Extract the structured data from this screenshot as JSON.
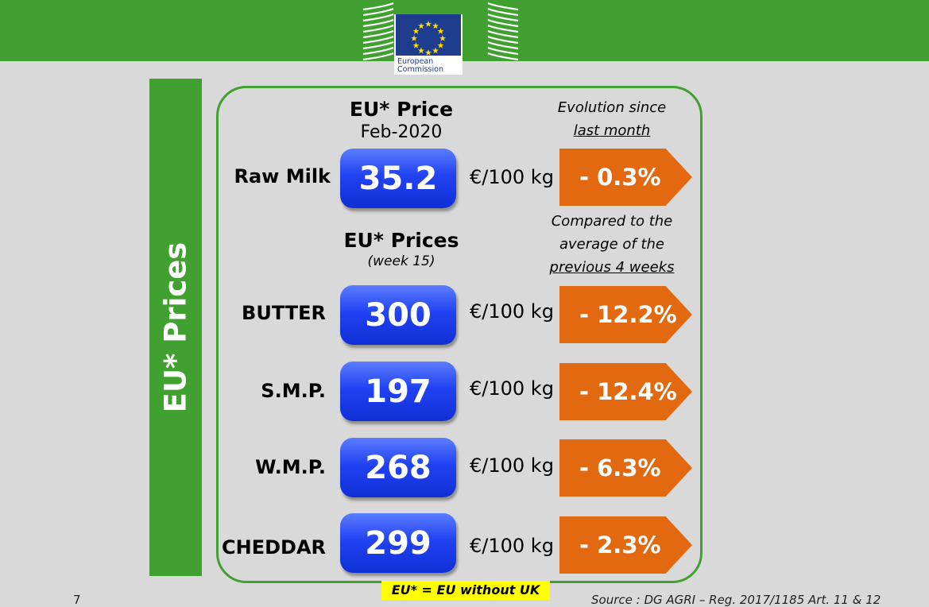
{
  "header": {
    "logo_text": "European Commission"
  },
  "side_label": "EU* Prices",
  "section_top": {
    "title": "EU* Price",
    "date": "Feb-2020",
    "evolution_line1": "Evolution since",
    "evolution_line2": "last month"
  },
  "section_weekly": {
    "title": "EU* Prices",
    "week": "(week 15)",
    "compare_line1": "Compared to the",
    "compare_line2": "average of the",
    "compare_line3": "previous 4 weeks"
  },
  "products": [
    {
      "name": "Raw Milk",
      "price": "35.2",
      "unit": "€/100 kg",
      "change": "- 0.3%"
    },
    {
      "name": "BUTTER",
      "price": "300",
      "unit": "€/100 kg",
      "change": "- 12.2%"
    },
    {
      "name": "S.M.P.",
      "price": "197",
      "unit": "€/100 kg",
      "change": "- 12.4%"
    },
    {
      "name": "W.M.P.",
      "price": "268",
      "unit": "€/100 kg",
      "change": "- 6.3%"
    },
    {
      "name": "CHEDDAR",
      "price": "299",
      "unit": "€/100 kg",
      "change": "- 2.3%"
    }
  ],
  "footnote": "EU* = EU without UK",
  "source": "Source : DG AGRI – Reg. 2017/1185 Art. 11 & 12",
  "page_number": "7",
  "colors": {
    "green": "#41a130",
    "blue_box": "#2142f2",
    "orange": "#e2690f",
    "footnote_bg": "#ffff00",
    "background": "#d9d9d9"
  }
}
